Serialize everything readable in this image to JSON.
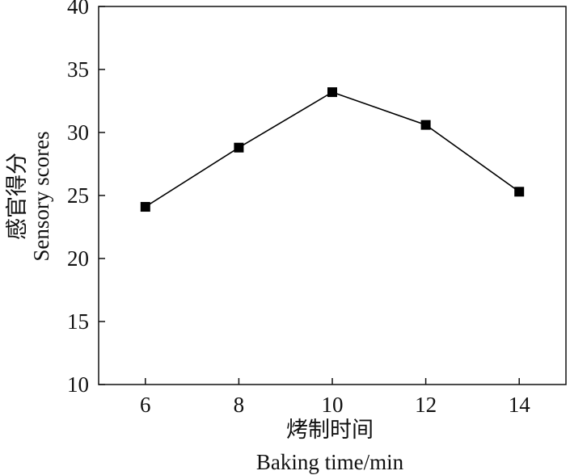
{
  "chart_data": {
    "type": "line",
    "x": [
      6,
      8,
      10,
      12,
      14
    ],
    "series": [
      {
        "values": [
          24.1,
          28.8,
          33.2,
          30.6,
          25.3
        ]
      }
    ],
    "xlabel_cn": "烤制时间",
    "xlabel_en": "Baking time/min",
    "ylabel_cn": "感官得分",
    "ylabel_en": "Sensory scores",
    "ylim": [
      10,
      40
    ],
    "yticks": [
      "10",
      "15",
      "20",
      "25",
      "30",
      "35",
      "40"
    ],
    "xticks": [
      "6",
      "8",
      "10",
      "12",
      "14"
    ],
    "grid": false,
    "marker": "square",
    "line_color": "#000000",
    "marker_color": "#000000"
  }
}
